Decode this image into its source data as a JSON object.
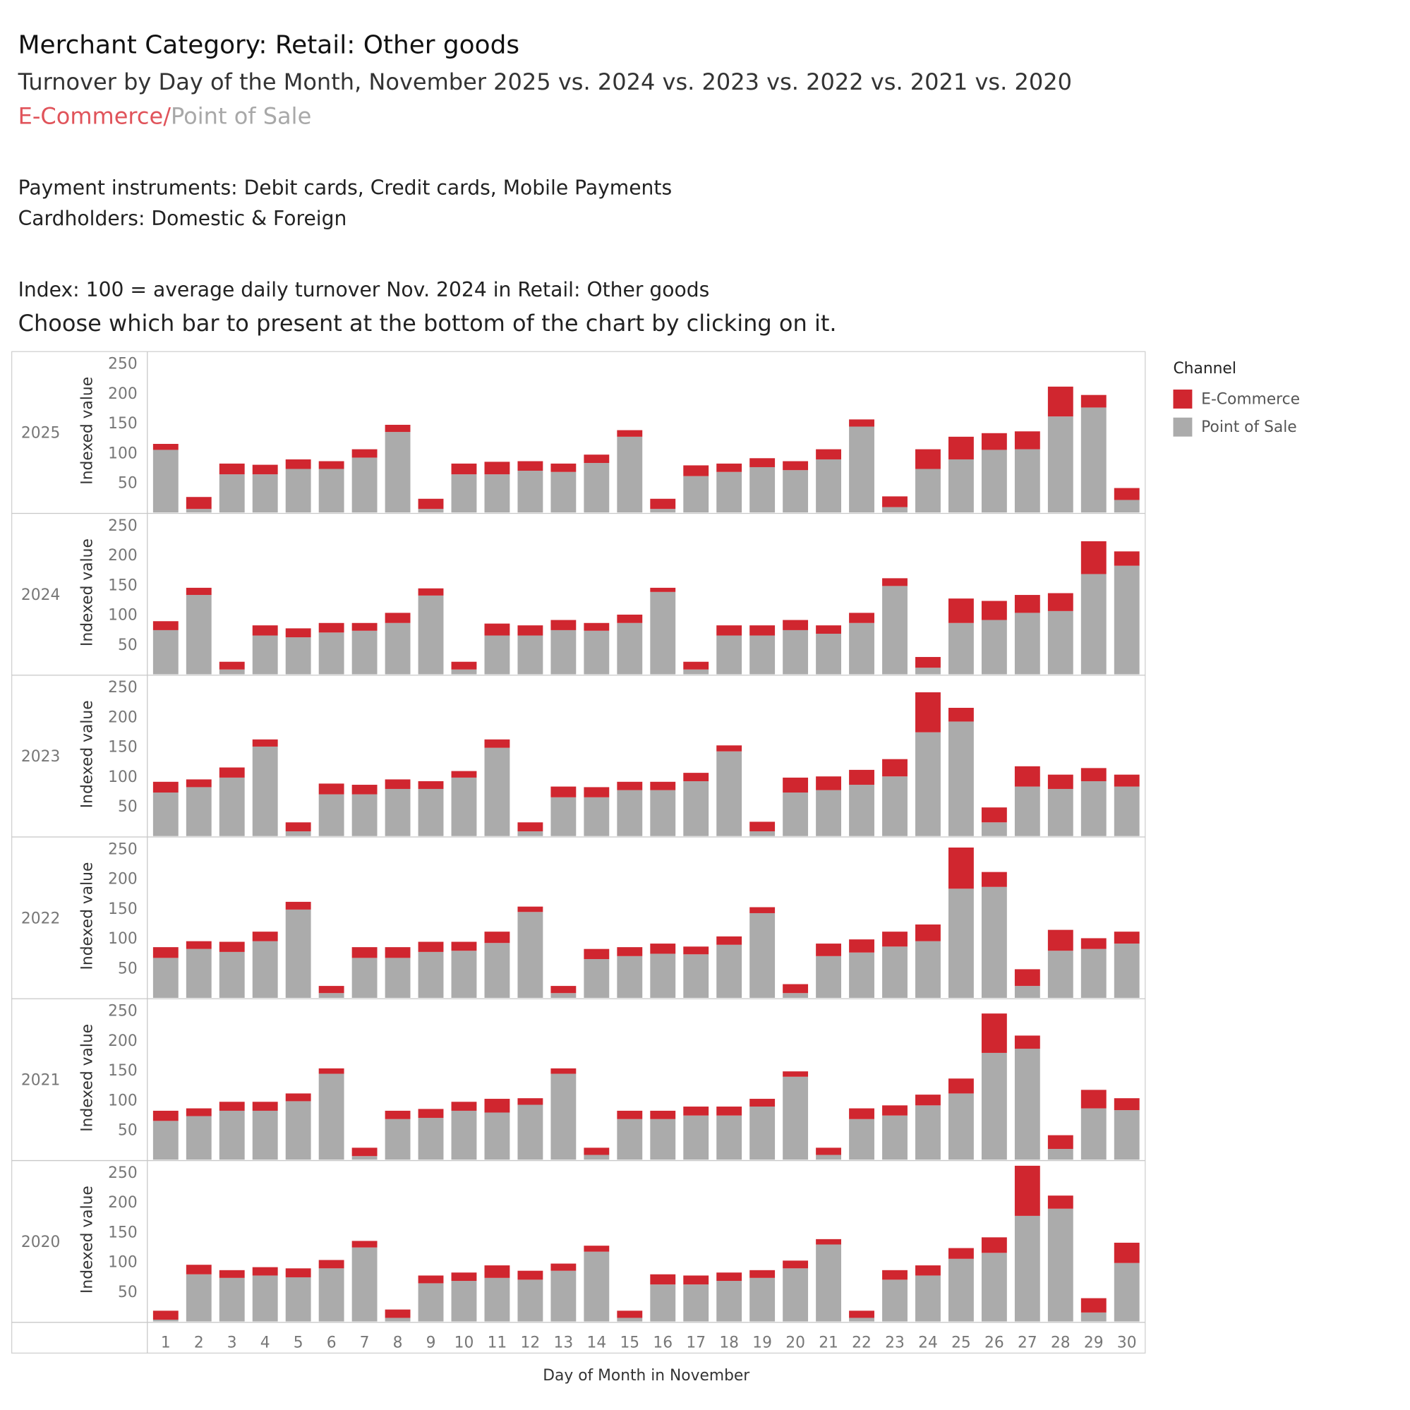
{
  "header": {
    "title": "Merchant Category: Retail: Other goods",
    "subtitle": "Turnover by Day of the Month, November 2025 vs. 2024 vs. 2023 vs. 2022 vs. 2021 vs. 2020",
    "channel_ecommerce": "E-Commerce",
    "channel_separator": "/",
    "channel_pos": "Point of Sale",
    "payment_instruments": "Payment instruments: Debit cards, Credit cards, Mobile Payments",
    "cardholders": "Cardholders: Domestic & Foreign",
    "index_note": "Index: 100 = average daily turnover Nov. 2024 in Retail: Other goods",
    "instruction": "Choose which bar to present at the bottom of the chart by clicking on it."
  },
  "legend": {
    "title": "Channel",
    "items": [
      {
        "label": "E-Commerce",
        "color": "#d0262f"
      },
      {
        "label": "Point of Sale",
        "color": "#ababab"
      }
    ]
  },
  "chart_data": {
    "type": "bar",
    "stacked": true,
    "xlabel": "Day of Month in November",
    "ylabel": "Indexed value",
    "ylim": [
      0,
      250
    ],
    "yticks": [
      50,
      100,
      150,
      200,
      250
    ],
    "categories": [
      1,
      2,
      3,
      4,
      5,
      6,
      7,
      8,
      9,
      10,
      11,
      12,
      13,
      14,
      15,
      16,
      17,
      18,
      19,
      20,
      21,
      22,
      23,
      24,
      25,
      26,
      27,
      28,
      29,
      30
    ],
    "legend_placement": "right",
    "panels": [
      {
        "year": "2025",
        "pos": [
          105,
          6,
          64,
          64,
          73,
          73,
          92,
          135,
          6,
          64,
          64,
          70,
          68,
          83,
          127,
          6,
          61,
          68,
          76,
          71,
          89,
          144,
          9,
          73,
          89,
          105,
          106,
          161,
          176,
          21
        ],
        "ecom": [
          10,
          20,
          18,
          16,
          16,
          13,
          14,
          12,
          17,
          18,
          21,
          16,
          14,
          14,
          11,
          17,
          18,
          14,
          15,
          15,
          17,
          12,
          18,
          33,
          38,
          28,
          30,
          50,
          21,
          20
        ]
      },
      {
        "year": "2024",
        "pos": [
          74,
          133,
          8,
          65,
          62,
          70,
          73,
          86,
          132,
          8,
          65,
          65,
          74,
          73,
          86,
          138,
          8,
          65,
          65,
          74,
          68,
          86,
          148,
          11,
          86,
          91,
          103,
          106,
          168,
          182
        ],
        "ecom": [
          15,
          12,
          13,
          17,
          15,
          16,
          13,
          17,
          12,
          13,
          20,
          17,
          17,
          13,
          14,
          7,
          13,
          17,
          17,
          17,
          14,
          17,
          13,
          18,
          41,
          32,
          30,
          30,
          55,
          24
        ]
      },
      {
        "year": "2023",
        "pos": [
          73,
          82,
          98,
          150,
          8,
          70,
          70,
          79,
          79,
          98,
          148,
          8,
          65,
          65,
          77,
          77,
          92,
          142,
          8,
          73,
          77,
          86,
          100,
          174,
          192,
          23,
          83,
          79,
          92,
          83
        ],
        "ecom": [
          18,
          13,
          17,
          12,
          15,
          18,
          16,
          16,
          13,
          11,
          14,
          15,
          18,
          17,
          14,
          14,
          14,
          10,
          16,
          25,
          23,
          25,
          29,
          67,
          23,
          25,
          34,
          24,
          22,
          20
        ]
      },
      {
        "year": "2022",
        "pos": [
          67,
          82,
          77,
          95,
          148,
          8,
          67,
          67,
          77,
          79,
          92,
          144,
          8,
          65,
          70,
          74,
          73,
          89,
          142,
          8,
          70,
          76,
          86,
          95,
          183,
          186,
          20,
          79,
          82,
          91
        ],
        "ecom": [
          18,
          13,
          17,
          16,
          13,
          12,
          18,
          18,
          17,
          15,
          19,
          9,
          12,
          17,
          15,
          17,
          13,
          14,
          10,
          15,
          21,
          22,
          25,
          28,
          69,
          25,
          28,
          35,
          18,
          20
        ]
      },
      {
        "year": "2021",
        "pos": [
          65,
          73,
          82,
          82,
          98,
          144,
          6,
          68,
          70,
          82,
          79,
          92,
          144,
          8,
          68,
          68,
          74,
          74,
          89,
          139,
          8,
          68,
          74,
          91,
          111,
          179,
          186,
          18,
          86,
          83
        ],
        "ecom": [
          17,
          13,
          15,
          15,
          13,
          9,
          14,
          14,
          15,
          15,
          23,
          11,
          9,
          12,
          14,
          14,
          15,
          15,
          13,
          9,
          12,
          18,
          17,
          18,
          25,
          66,
          22,
          23,
          31,
          20
        ]
      },
      {
        "year": "2020",
        "pos": [
          3,
          79,
          73,
          77,
          74,
          89,
          124,
          6,
          64,
          68,
          73,
          70,
          85,
          117,
          6,
          62,
          62,
          68,
          73,
          89,
          129,
          6,
          70,
          77,
          105,
          115,
          177,
          189,
          15,
          98
        ],
        "ecom": [
          15,
          16,
          13,
          14,
          15,
          14,
          11,
          14,
          13,
          14,
          21,
          15,
          12,
          10,
          12,
          17,
          15,
          14,
          13,
          13,
          9,
          12,
          16,
          17,
          18,
          26,
          84,
          22,
          24,
          34
        ]
      }
    ]
  }
}
